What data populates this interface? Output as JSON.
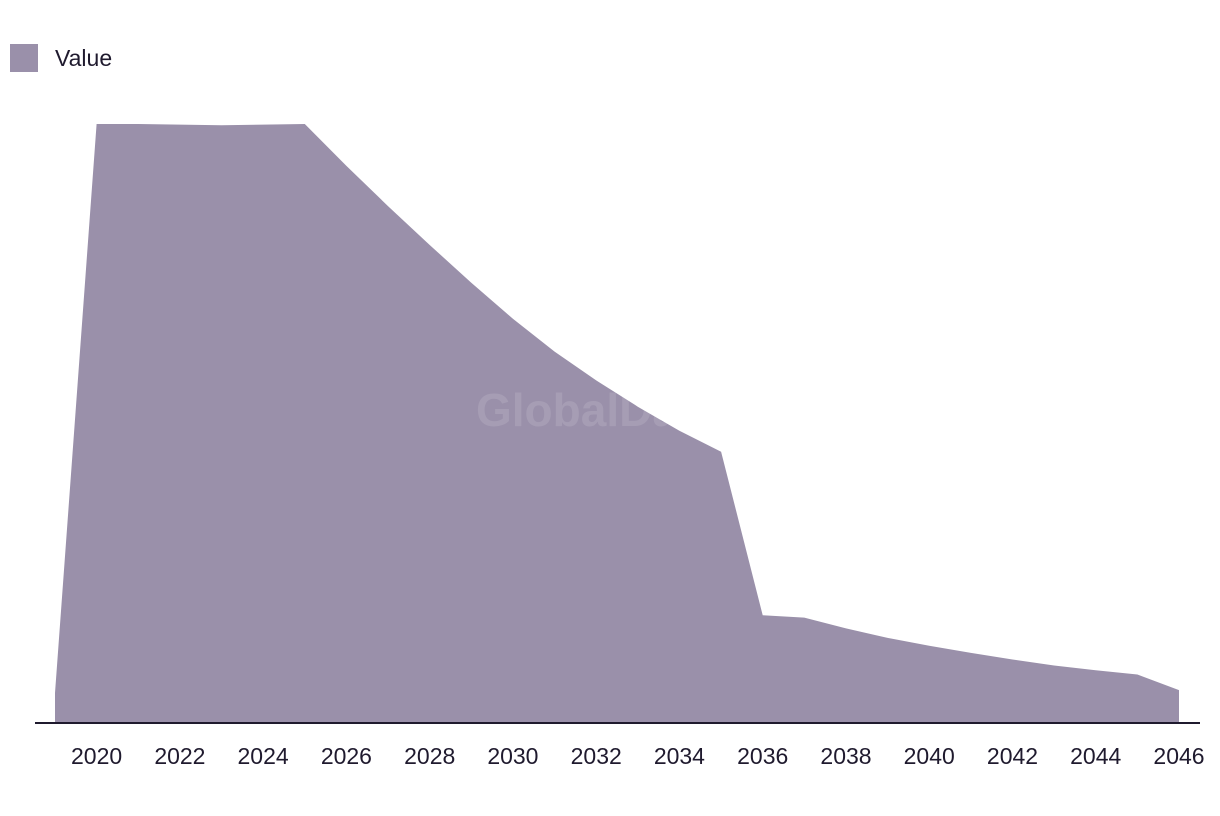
{
  "legend": {
    "label": "Value"
  },
  "watermark": "GlobalData",
  "colors": {
    "area": "#9a90aa",
    "axis": "#1f1a2e",
    "text": "#1f1a2e"
  },
  "chart_data": {
    "type": "area",
    "title": "",
    "xlabel": "",
    "ylabel": "",
    "x": [
      2019,
      2020,
      2021,
      2022,
      2023,
      2024,
      2025,
      2026,
      2027,
      2028,
      2029,
      2030,
      2031,
      2032,
      2033,
      2034,
      2035,
      2036,
      2037,
      2038,
      2039,
      2040,
      2041,
      2042,
      2043,
      2044,
      2045,
      2046
    ],
    "series": [
      {
        "name": "Value",
        "values": [
          5,
          100,
          100,
          99.9,
          99.8,
          99.9,
          100,
          93,
          86.3,
          79.8,
          73.5,
          67.5,
          62,
          57.2,
          52.8,
          48.8,
          45.3,
          18,
          17.6,
          15.8,
          14.2,
          12.9,
          11.7,
          10.6,
          9.6,
          8.8,
          8.1,
          5.5
        ]
      }
    ],
    "xticks": [
      "2020",
      "2022",
      "2024",
      "2026",
      "2028",
      "2030",
      "2032",
      "2034",
      "2036",
      "2038",
      "2040",
      "2042",
      "2044",
      "2046"
    ],
    "xtick_values": [
      2020,
      2022,
      2024,
      2026,
      2028,
      2030,
      2032,
      2034,
      2036,
      2038,
      2040,
      2042,
      2044,
      2046
    ],
    "xlim": [
      2019,
      2046
    ],
    "ylim": [
      0,
      100
    ],
    "grid": false,
    "legend_position": "top-left"
  }
}
